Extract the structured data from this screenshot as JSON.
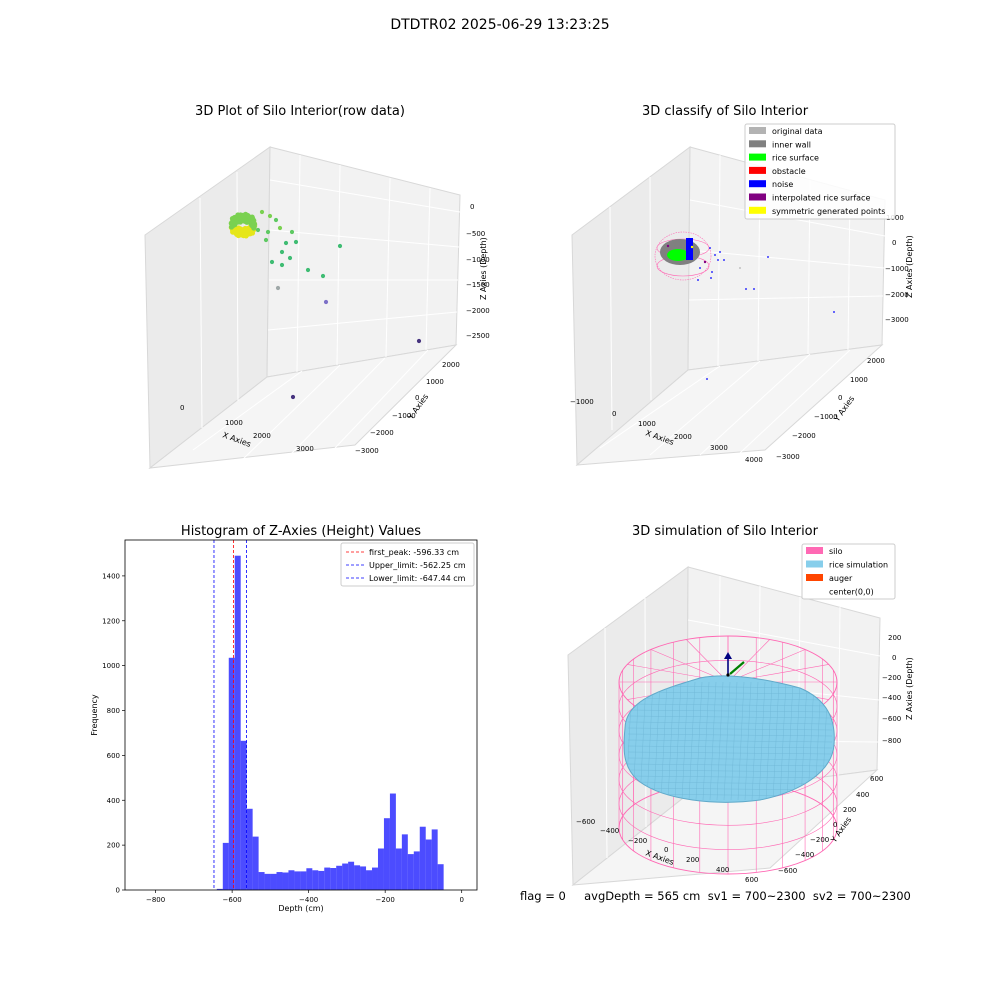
{
  "suptitle": "DTDTR02 2025-06-29 13:23:25",
  "footer": "flag = 0     avgDepth = 565 cm  sv1 = 700~2300  sv2 = 700~2300",
  "plot1": {
    "title": "3D Plot of Silo Interior(row data)",
    "xlabel": "X Axies",
    "ylabel": "Y Axies",
    "zlabel": "Z Axies (Depth)",
    "xticks": [
      "0",
      "1000",
      "2000",
      "3000"
    ],
    "yticks": [
      "2000",
      "1000",
      "0",
      "−1000",
      "−2000",
      "−3000"
    ],
    "zticks": [
      "0",
      "−500",
      "−1000",
      "−1500",
      "−2000",
      "−2500"
    ]
  },
  "plot2": {
    "title": "3D classify of Silo Interior",
    "xlabel": "X Axies",
    "ylabel": "Y Axies",
    "zlabel": "Z Axies (Depth)",
    "xticks": [
      "−1000",
      "0",
      "1000",
      "2000",
      "3000",
      "4000"
    ],
    "yticks": [
      "2000",
      "1000",
      "0",
      "−1000",
      "−2000",
      "−3000"
    ],
    "zticks": [
      "1000",
      "0",
      "−1000",
      "−2000",
      "−3000"
    ],
    "legend": [
      {
        "label": "original data",
        "color": "#b3b3b3"
      },
      {
        "label": "inner wall",
        "color": "#808080"
      },
      {
        "label": "rice surface",
        "color": "#00ff00"
      },
      {
        "label": "obstacle",
        "color": "#ff0000"
      },
      {
        "label": "noise",
        "color": "#0000ff"
      },
      {
        "label": "interpolated rice surface",
        "color": "#800080"
      },
      {
        "label": "symmetric generated points",
        "color": "#ffff00"
      }
    ]
  },
  "plot4": {
    "title": "3D simulation of Silo Interior",
    "xlabel": "X Axies",
    "ylabel": "Y Axies",
    "zlabel": "Z Axies (Depth)",
    "xticks": [
      "−600",
      "−400",
      "−200",
      "0",
      "200",
      "400",
      "600"
    ],
    "yticks": [
      "600",
      "400",
      "200",
      "0",
      "−200",
      "−400",
      "−600"
    ],
    "zticks": [
      "200",
      "0",
      "−200",
      "−400",
      "−600",
      "−800"
    ],
    "legend": [
      {
        "label": "silo",
        "color": "#ff69b4"
      },
      {
        "label": "rice simulation",
        "color": "#87ceeb"
      },
      {
        "label": "auger",
        "color": "#ff4500"
      },
      {
        "label": "center(0,0)",
        "color": "#ffffff"
      }
    ]
  },
  "chart_data": [
    {
      "type": "histogram",
      "title": "Histogram of Z-Axies (Height) Values",
      "xlabel": "Depth (cm)",
      "ylabel": "Frequency",
      "xlim": [
        -880,
        40
      ],
      "ylim": [
        0,
        1560
      ],
      "xticks": [
        -800,
        -600,
        -400,
        -200,
        0
      ],
      "yticks": [
        0,
        200,
        400,
        600,
        800,
        1000,
        1200,
        1400
      ],
      "bar_color": "#0000ff",
      "bar_alpha": 0.7,
      "bin_start": -640,
      "bin_width": 15.6,
      "counts": [
        5,
        210,
        1035,
        1490,
        665,
        362,
        238,
        80,
        72,
        72,
        80,
        78,
        88,
        83,
        83,
        97,
        88,
        85,
        100,
        98,
        108,
        118,
        126,
        110,
        105,
        88,
        100,
        185,
        320,
        430,
        185,
        248,
        160,
        172,
        282,
        225,
        270,
        115
      ],
      "vlines": [
        {
          "label": "first_peak: -596.33 cm",
          "x": -596.33,
          "color": "#ff0000"
        },
        {
          "label": "Upper_limit: -562.25 cm",
          "x": -562.25,
          "color": "#0000ff"
        },
        {
          "label": "Lower_limit: -647.44 cm",
          "x": -647.44,
          "color": "#0000ff"
        }
      ],
      "legend_position": "upper right"
    }
  ]
}
